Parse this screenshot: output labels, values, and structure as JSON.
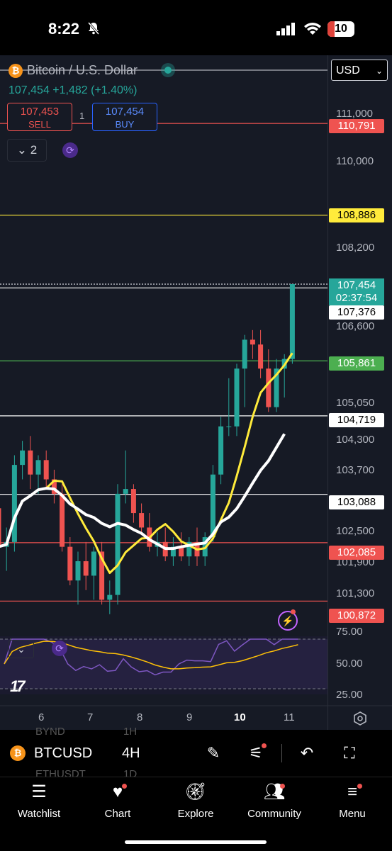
{
  "status_bar": {
    "time": "8:22",
    "battery": "10"
  },
  "header": {
    "title": "Bitcoin / U.S. Dollar",
    "currency": "USD",
    "price_line": "107,454 +1,482 (+1.40%)"
  },
  "trade": {
    "sell_value": "107,453",
    "sell_label": "SELL",
    "spread": "1",
    "buy_value": "107,454",
    "buy_label": "BUY"
  },
  "collapse_count": "2",
  "price_axis": [
    "111,000",
    "110,000",
    "108,200",
    "106,600",
    "105,050",
    "104,300",
    "103,700",
    "102,500",
    "101,900",
    "101,300"
  ],
  "price_tags": {
    "t110791": "110,791",
    "t108886": "108,886",
    "t107454": "107,454",
    "countdown": "02:37:54",
    "t107376": "107,376",
    "t105861": "105,861",
    "t104719": "104,719",
    "t103088": "103,088",
    "t102085": "102,085",
    "t100872": "100,872"
  },
  "rsi_axis": [
    "75.00",
    "50.00",
    "25.00"
  ],
  "time_axis": [
    "6",
    "7",
    "8",
    "9",
    "10",
    "11"
  ],
  "ghost_rows": [
    {
      "sym": "BYND",
      "int": "1H"
    },
    {
      "sym": "ETHUSDT",
      "int": "1D"
    }
  ],
  "symbol_bar": {
    "symbol": "BTCUSD",
    "interval": "4H"
  },
  "tabs": [
    "Watchlist",
    "Chart",
    "Explore",
    "Community",
    "Menu"
  ],
  "colors": {
    "up": "#26a69a",
    "down": "#ef5350",
    "ma_fast": "#ffeb3b",
    "ma_slow": "#ffffff",
    "rsi": "#7e57c2"
  },
  "chart_data": {
    "type": "candlestick",
    "symbol": "BTCUSD",
    "interval": "4H",
    "candles": [
      {
        "o": 102800,
        "h": 103100,
        "l": 101900,
        "c": 102000
      },
      {
        "o": 102000,
        "h": 102400,
        "l": 101500,
        "c": 102100
      },
      {
        "o": 102100,
        "h": 103900,
        "l": 101900,
        "c": 103700
      },
      {
        "o": 103700,
        "h": 104200,
        "l": 103400,
        "c": 104000
      },
      {
        "o": 104000,
        "h": 104300,
        "l": 103200,
        "c": 103500
      },
      {
        "o": 103500,
        "h": 103900,
        "l": 103100,
        "c": 103800
      },
      {
        "o": 103800,
        "h": 104000,
        "l": 103200,
        "c": 103400
      },
      {
        "o": 103400,
        "h": 103600,
        "l": 102900,
        "c": 103100
      },
      {
        "o": 103100,
        "h": 103300,
        "l": 101900,
        "c": 102000
      },
      {
        "o": 102000,
        "h": 102200,
        "l": 101200,
        "c": 101300
      },
      {
        "o": 101300,
        "h": 101900,
        "l": 100800,
        "c": 101700
      },
      {
        "o": 101700,
        "h": 102100,
        "l": 101100,
        "c": 101400
      },
      {
        "o": 101400,
        "h": 102000,
        "l": 100900,
        "c": 101900
      },
      {
        "o": 101900,
        "h": 102100,
        "l": 100800,
        "c": 100900
      },
      {
        "o": 100900,
        "h": 101300,
        "l": 100600,
        "c": 101000
      },
      {
        "o": 101000,
        "h": 103300,
        "l": 100800,
        "c": 103100
      },
      {
        "o": 103100,
        "h": 104000,
        "l": 102900,
        "c": 103200
      },
      {
        "o": 103200,
        "h": 103300,
        "l": 102500,
        "c": 102700
      },
      {
        "o": 102700,
        "h": 102900,
        "l": 102300,
        "c": 102400
      },
      {
        "o": 102400,
        "h": 102700,
        "l": 101900,
        "c": 102000
      },
      {
        "o": 102000,
        "h": 102300,
        "l": 101800,
        "c": 102100
      },
      {
        "o": 102100,
        "h": 102400,
        "l": 101700,
        "c": 101800
      },
      {
        "o": 101800,
        "h": 102200,
        "l": 101600,
        "c": 102000
      },
      {
        "o": 102000,
        "h": 102300,
        "l": 101700,
        "c": 101800
      },
      {
        "o": 101800,
        "h": 102200,
        "l": 101600,
        "c": 102100
      },
      {
        "o": 102100,
        "h": 102400,
        "l": 101600,
        "c": 101800
      },
      {
        "o": 101800,
        "h": 102300,
        "l": 101600,
        "c": 102200
      },
      {
        "o": 102200,
        "h": 103700,
        "l": 102100,
        "c": 103500
      },
      {
        "o": 103500,
        "h": 104700,
        "l": 103300,
        "c": 104500
      },
      {
        "o": 104500,
        "h": 105500,
        "l": 104300,
        "c": 104500
      },
      {
        "o": 104500,
        "h": 105800,
        "l": 104300,
        "c": 105700
      },
      {
        "o": 105700,
        "h": 106400,
        "l": 104900,
        "c": 106300
      },
      {
        "o": 106300,
        "h": 106500,
        "l": 105900,
        "c": 106200
      },
      {
        "o": 106200,
        "h": 106500,
        "l": 105500,
        "c": 105700
      },
      {
        "o": 105700,
        "h": 106100,
        "l": 104800,
        "c": 104900
      },
      {
        "o": 104900,
        "h": 105900,
        "l": 104800,
        "c": 105700
      },
      {
        "o": 105700,
        "h": 106000,
        "l": 105100,
        "c": 105900
      },
      {
        "o": 105900,
        "h": 107454,
        "l": 105800,
        "c": 107454
      }
    ]
  }
}
